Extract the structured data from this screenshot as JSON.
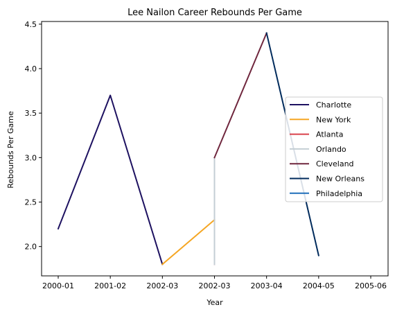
{
  "chart_data": {
    "type": "line",
    "title": "Lee Nailon Career Rebounds Per Game",
    "xlabel": "Year",
    "ylabel": "Rebounds Per Game",
    "categories": [
      "2000-01",
      "2001-02",
      "2002-03",
      "2002-03",
      "2003-04",
      "2004-05",
      "2005-06"
    ],
    "ylim": [
      1.67,
      4.53
    ],
    "yticks": [
      2.0,
      2.5,
      3.0,
      3.5,
      4.0,
      4.5
    ],
    "ytick_labels": [
      "2.0",
      "2.5",
      "3.0",
      "3.5",
      "4.0",
      "4.5"
    ],
    "grid": false,
    "legend_position": "center-right",
    "series": [
      {
        "name": "Charlotte",
        "color": "#1d1160",
        "points": [
          [
            0,
            2.2
          ],
          [
            1,
            3.7
          ],
          [
            2,
            1.8
          ]
        ]
      },
      {
        "name": "New York",
        "color": "#f5a623",
        "points": [
          [
            2,
            1.8
          ],
          [
            3,
            2.3
          ]
        ]
      },
      {
        "name": "Atlanta",
        "color": "#d9414b",
        "points": [
          [
            3,
            2.3
          ],
          [
            3,
            1.8
          ]
        ]
      },
      {
        "name": "Orlando",
        "color": "#c4ced4",
        "points": [
          [
            3,
            1.8
          ],
          [
            3,
            3.0
          ]
        ]
      },
      {
        "name": "Cleveland",
        "color": "#6f263d",
        "points": [
          [
            3,
            3.0
          ],
          [
            4,
            4.4
          ]
        ]
      },
      {
        "name": "New Orleans",
        "color": "#002b5c",
        "points": [
          [
            4,
            4.4
          ],
          [
            5,
            1.9
          ]
        ]
      },
      {
        "name": "Philadelphia",
        "color": "#1f6fba",
        "points": [
          [
            5,
            1.9
          ]
        ]
      }
    ]
  }
}
